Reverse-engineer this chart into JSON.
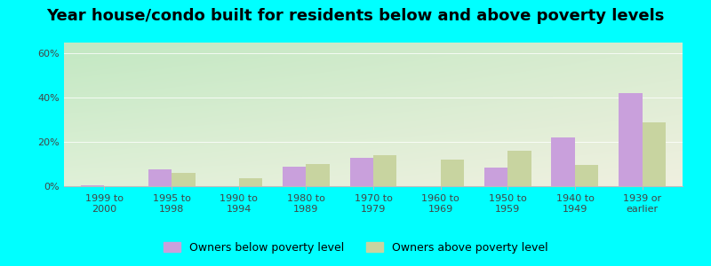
{
  "title": "Year house/condo built for residents below and above poverty levels",
  "categories": [
    "1999 to\n2000",
    "1995 to\n1998",
    "1990 to\n1994",
    "1980 to\n1989",
    "1970 to\n1979",
    "1960 to\n1969",
    "1950 to\n1959",
    "1940 to\n1949",
    "1939 or\nearlier"
  ],
  "below_poverty": [
    0.5,
    7.5,
    0.0,
    9.0,
    13.0,
    0.0,
    8.5,
    22.0,
    42.0
  ],
  "above_poverty": [
    0.0,
    6.0,
    3.5,
    10.0,
    14.0,
    12.0,
    16.0,
    9.5,
    29.0
  ],
  "below_color": "#c9a0dc",
  "above_color": "#c8d4a0",
  "bg_topleft": "#c2e8c2",
  "bg_bottomright": "#f0f0e0",
  "outer_bg": "#00ffff",
  "ylim": [
    0,
    65
  ],
  "yticks": [
    0,
    20,
    40,
    60
  ],
  "ytick_labels": [
    "0%",
    "20%",
    "40%",
    "60%"
  ],
  "legend_below": "Owners below poverty level",
  "legend_above": "Owners above poverty level",
  "bar_width": 0.35,
  "title_fontsize": 13,
  "tick_fontsize": 8,
  "legend_fontsize": 9
}
